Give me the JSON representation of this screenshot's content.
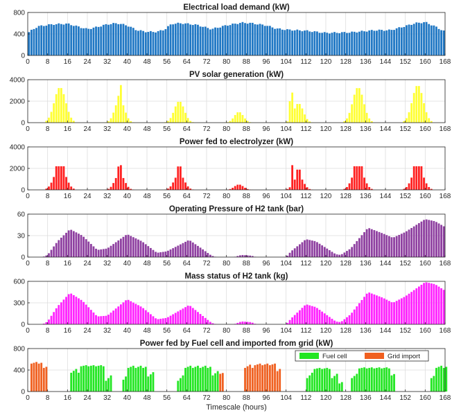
{
  "figure": {
    "xlabel": "Timescale (hours)"
  },
  "chart_data": [
    {
      "type": "bar",
      "title": "Electrical load demand (kW)",
      "xlim": [
        0,
        168
      ],
      "ylim": [
        0,
        800
      ],
      "xticks": [
        0,
        8,
        16,
        24,
        32,
        40,
        48,
        56,
        64,
        72,
        80,
        88,
        96,
        104,
        112,
        120,
        128,
        136,
        144,
        152,
        160,
        168
      ],
      "yticks": [
        0,
        400,
        800
      ],
      "color": "#1f77c4",
      "key_points": [
        [
          0,
          420
        ],
        [
          4,
          540
        ],
        [
          10,
          580
        ],
        [
          16,
          590
        ],
        [
          20,
          540
        ],
        [
          24,
          490
        ],
        [
          28,
          530
        ],
        [
          32,
          580
        ],
        [
          36,
          600
        ],
        [
          40,
          560
        ],
        [
          44,
          470
        ],
        [
          48,
          440
        ],
        [
          52,
          440
        ],
        [
          55,
          480
        ],
        [
          58,
          590
        ],
        [
          62,
          600
        ],
        [
          68,
          570
        ],
        [
          74,
          490
        ],
        [
          80,
          560
        ],
        [
          86,
          610
        ],
        [
          90,
          600
        ],
        [
          96,
          560
        ],
        [
          100,
          500
        ],
        [
          104,
          480
        ],
        [
          112,
          460
        ],
        [
          120,
          420
        ],
        [
          130,
          430
        ],
        [
          140,
          470
        ],
        [
          146,
          470
        ],
        [
          150,
          520
        ],
        [
          156,
          600
        ],
        [
          160,
          620
        ],
        [
          164,
          540
        ],
        [
          168,
          440
        ]
      ]
    },
    {
      "type": "bar",
      "title": "PV solar generation (kW)",
      "xlim": [
        0,
        168
      ],
      "ylim": [
        0,
        4000
      ],
      "xticks": [
        0,
        8,
        16,
        24,
        32,
        40,
        48,
        56,
        64,
        72,
        80,
        88,
        96,
        104,
        112,
        120,
        128,
        136,
        144,
        152,
        160,
        168
      ],
      "yticks": [
        0,
        2000,
        4000
      ],
      "color": "#ffff33",
      "day_peaks": [
        3300,
        2200,
        2000,
        1000,
        1800,
        3300,
        3500
      ],
      "spikes": [
        [
          37,
          3500
        ],
        [
          36,
          2500
        ],
        [
          106,
          2800
        ],
        [
          105,
          2000
        ]
      ]
    },
    {
      "type": "bar",
      "title": "Power fed to electrolyzer (kW)",
      "xlim": [
        0,
        168
      ],
      "ylim": [
        0,
        4000
      ],
      "xticks": [
        0,
        8,
        16,
        24,
        32,
        40,
        48,
        56,
        64,
        72,
        80,
        88,
        96,
        104,
        112,
        120,
        128,
        136,
        144,
        152,
        160,
        168
      ],
      "yticks": [
        0,
        2000,
        4000
      ],
      "color": "#ff2020",
      "cap": 2200,
      "day_peaks": [
        2200,
        1500,
        1500,
        500,
        1300,
        2200,
        2200
      ],
      "spikes": [
        [
          37,
          2300
        ],
        [
          106,
          2300
        ]
      ]
    },
    {
      "type": "bar",
      "title": "Operating Pressure of H2 tank (bar)",
      "xlim": [
        0,
        168
      ],
      "ylim": [
        0,
        60
      ],
      "xticks": [
        0,
        8,
        16,
        24,
        32,
        40,
        48,
        56,
        64,
        72,
        80,
        88,
        96,
        104,
        112,
        120,
        128,
        136,
        144,
        152,
        160,
        168
      ],
      "yticks": [
        0,
        30,
        60
      ],
      "color": "#8e3fa0",
      "key_points": [
        [
          0,
          0
        ],
        [
          6,
          0
        ],
        [
          8,
          3
        ],
        [
          12,
          22
        ],
        [
          17,
          39
        ],
        [
          22,
          30
        ],
        [
          28,
          10
        ],
        [
          32,
          12
        ],
        [
          40,
          32
        ],
        [
          46,
          22
        ],
        [
          52,
          6
        ],
        [
          56,
          8
        ],
        [
          65,
          24
        ],
        [
          70,
          12
        ],
        [
          74,
          2
        ],
        [
          76,
          0
        ],
        [
          83,
          0
        ],
        [
          86,
          3
        ],
        [
          90,
          2
        ],
        [
          92,
          0
        ],
        [
          104,
          0
        ],
        [
          106,
          8
        ],
        [
          112,
          25
        ],
        [
          116,
          22
        ],
        [
          124,
          4
        ],
        [
          126,
          3
        ],
        [
          130,
          12
        ],
        [
          137,
          41
        ],
        [
          143,
          33
        ],
        [
          147,
          27
        ],
        [
          152,
          35
        ],
        [
          160,
          53
        ],
        [
          164,
          50
        ],
        [
          168,
          42
        ]
      ]
    },
    {
      "type": "bar",
      "title": "Mass status of H2 tank (kg)",
      "xlim": [
        0,
        168
      ],
      "ylim": [
        0,
        600
      ],
      "xticks": [
        0,
        8,
        16,
        24,
        32,
        40,
        48,
        56,
        64,
        72,
        80,
        88,
        96,
        104,
        112,
        120,
        128,
        136,
        144,
        152,
        160,
        168
      ],
      "yticks": [
        0,
        300,
        600
      ],
      "color": "#ff22ff",
      "key_points": [
        [
          0,
          0
        ],
        [
          6,
          0
        ],
        [
          8,
          40
        ],
        [
          12,
          250
        ],
        [
          17,
          440
        ],
        [
          22,
          330
        ],
        [
          28,
          110
        ],
        [
          32,
          120
        ],
        [
          40,
          350
        ],
        [
          46,
          240
        ],
        [
          52,
          70
        ],
        [
          56,
          90
        ],
        [
          65,
          270
        ],
        [
          70,
          130
        ],
        [
          74,
          20
        ],
        [
          76,
          0
        ],
        [
          83,
          0
        ],
        [
          86,
          40
        ],
        [
          90,
          30
        ],
        [
          92,
          0
        ],
        [
          104,
          0
        ],
        [
          106,
          80
        ],
        [
          112,
          280
        ],
        [
          116,
          240
        ],
        [
          124,
          40
        ],
        [
          126,
          30
        ],
        [
          130,
          140
        ],
        [
          137,
          450
        ],
        [
          143,
          370
        ],
        [
          147,
          300
        ],
        [
          152,
          390
        ],
        [
          160,
          590
        ],
        [
          164,
          560
        ],
        [
          168,
          470
        ]
      ]
    },
    {
      "type": "bar",
      "title": "Power fed by Fuel cell and imported from grid (kW)",
      "xlim": [
        0,
        168
      ],
      "ylim": [
        0,
        800
      ],
      "xticks": [
        0,
        8,
        16,
        24,
        32,
        40,
        48,
        56,
        64,
        72,
        80,
        88,
        96,
        104,
        112,
        120,
        128,
        136,
        144,
        152,
        160,
        168
      ],
      "yticks": [
        0,
        400,
        800
      ],
      "legend_position": "top-right",
      "series": [
        {
          "name": "Fuel cell",
          "color": "#22e622",
          "segments": [
            [
              17,
              20,
              350,
              420
            ],
            [
              21,
              30,
              470,
              490
            ],
            [
              31,
              33,
              200,
              300
            ],
            [
              38,
              39,
              220,
              340
            ],
            [
              40,
              47,
              440,
              480
            ],
            [
              48,
              50,
              280,
              360
            ],
            [
              60,
              62,
              200,
              300
            ],
            [
              63,
              73,
              440,
              480
            ],
            [
              74,
              76,
              300,
              380
            ],
            [
              112,
              114,
              250,
              350
            ],
            [
              115,
              121,
              420,
              440
            ],
            [
              122,
              124,
              250,
              330
            ],
            [
              125,
              126,
              150,
              200
            ],
            [
              130,
              132,
              250,
              330
            ],
            [
              133,
              145,
              430,
              450
            ],
            [
              146,
              147,
              300,
              350
            ],
            [
              162,
              163,
              250,
              330
            ],
            [
              164,
              168,
              440,
              480
            ]
          ]
        },
        {
          "name": "Grid import",
          "color": "#f06020",
          "segments": [
            [
              1,
              5,
              520,
              550
            ],
            [
              6,
              7,
              440,
              480
            ],
            [
              77,
              78,
              330,
              360
            ],
            [
              87,
              90,
              440,
              500
            ],
            [
              91,
              99,
              490,
              520
            ],
            [
              100,
              101,
              380,
              460
            ]
          ]
        }
      ]
    }
  ]
}
